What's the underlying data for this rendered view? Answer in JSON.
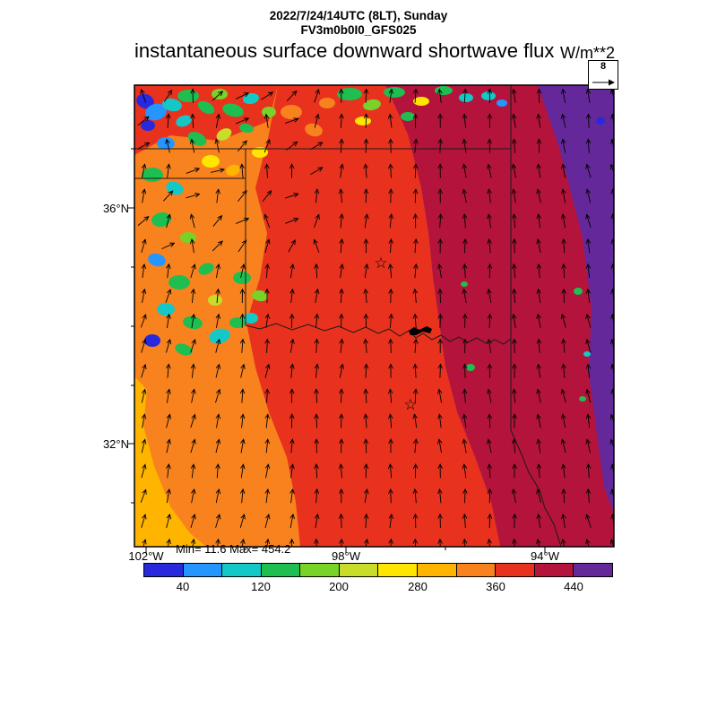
{
  "header": {
    "datetime_line": "2022/7/24/14UTC (8LT), Sunday",
    "model_line": "FV3m0b0I0_GFS025"
  },
  "title": {
    "text": "instantaneous surface downward shortwave flux",
    "units": "W/m**2"
  },
  "reference_vector": {
    "label": "8"
  },
  "axes": {
    "lat_ticks": [
      {
        "label": "36°N"
      },
      {
        "label": "32°N"
      }
    ],
    "lon_ticks": [
      {
        "label": "102°W"
      },
      {
        "label": "98°W"
      },
      {
        "label": "94°W"
      }
    ]
  },
  "stats_line": "Min= 11.6 Max= 454.2",
  "colorbar": {
    "tick_labels": [
      "40",
      "120",
      "200",
      "280",
      "360",
      "440"
    ],
    "colors": [
      "#2828DC",
      "#2596FF",
      "#14C8C8",
      "#1EBE50",
      "#78D228",
      "#C8DC28",
      "#FFE600",
      "#FFB400",
      "#F8821E",
      "#E8321E",
      "#B4143C",
      "#64289B"
    ]
  },
  "chart_data": {
    "type": "heatmap",
    "title": "instantaneous surface downward shortwave flux",
    "units": "W/m**2",
    "valid_time": "2022/7/24/14UTC (8LT), Sunday",
    "model": "FV3m0b0I0_GFS025",
    "field_min": 11.6,
    "field_max": 454.2,
    "colorbar_boundaries": [
      40,
      80,
      120,
      160,
      200,
      240,
      280,
      320,
      360,
      400,
      440
    ],
    "colorbar_labeled_ticks": [
      40,
      120,
      200,
      280,
      360,
      440
    ],
    "colorbar_colors": [
      "#2828DC",
      "#2596FF",
      "#14C8C8",
      "#1EBE50",
      "#78D228",
      "#C8DC28",
      "#FFE600",
      "#FFB400",
      "#F8821E",
      "#E8321E",
      "#B4143C",
      "#64289B"
    ],
    "axes": {
      "lat_tick_labels": [
        "36°N",
        "32°N"
      ],
      "lat_tick_values": [
        36,
        32
      ],
      "lon_tick_labels": [
        "102°W",
        "98°W",
        "94°W"
      ],
      "lon_tick_values": [
        -102,
        -98,
        -94
      ],
      "lat_range_approx": [
        30.3,
        38.1
      ],
      "lon_range_approx": [
        -102.3,
        -92.5
      ]
    },
    "overlays": {
      "wind_vectors": {
        "reference_magnitude": 8,
        "style": "arrow-grid"
      },
      "city_star_markers": 2,
      "borders": "state-outlines",
      "water_body_marker": 1
    },
    "field_regions_estimated": [
      {
        "area": "west / southwest (orange)",
        "value_range": [
          280,
          360
        ]
      },
      {
        "area": "far southwest edge (amber)",
        "value_range": [
          240,
          280
        ]
      },
      {
        "area": "central band (red)",
        "value_range": [
          360,
          400
        ]
      },
      {
        "area": "east-central band (dark red)",
        "value_range": [
          400,
          440
        ]
      },
      {
        "area": "far east strip (purple)",
        "value_range": [
          440,
          455
        ]
      },
      {
        "area": "northwest cloudy patches (green/cyan/blue)",
        "value_range": [
          12,
          200
        ]
      }
    ],
    "legend_position": "bottom",
    "grid": false
  }
}
